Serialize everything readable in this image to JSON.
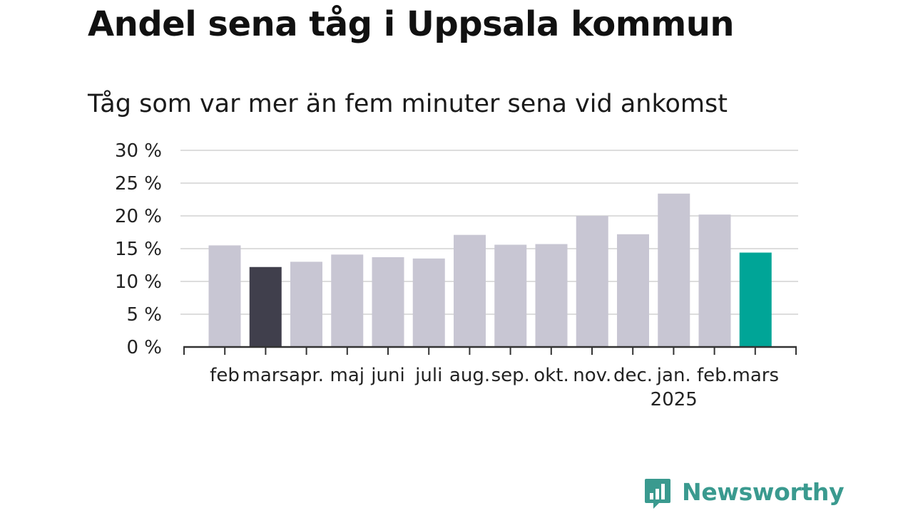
{
  "title": "Andel sena tåg i Uppsala kommun",
  "subtitle": "Tåg som var mer än fem minuter sena vid ankomst",
  "brand": {
    "name": "Newsworthy",
    "color": "#3a9a8f",
    "icon": "newsworthy-logo-icon"
  },
  "colors": {
    "default": "#c8c6d3",
    "previous_year": "#403f4c",
    "latest": "#00a597",
    "grid": "#dddddd",
    "axis": "#333333"
  },
  "chart_data": {
    "type": "bar",
    "categories": [
      "feb",
      "mars",
      "apr.",
      "maj",
      "juni",
      "juli",
      "aug.",
      "sep.",
      "okt.",
      "nov.",
      "dec.",
      "jan.",
      "feb.",
      "mars"
    ],
    "year_label": {
      "text": "2025",
      "under_category_index": 11
    },
    "values": [
      15.5,
      12.2,
      13.0,
      14.1,
      13.7,
      13.5,
      17.1,
      15.6,
      15.7,
      20.0,
      17.2,
      23.4,
      20.2,
      14.4
    ],
    "highlight": {
      "previous_year_index": 1,
      "latest_index": 13
    },
    "ylim": [
      0,
      30
    ],
    "yticks": [
      0,
      5,
      10,
      15,
      20,
      25,
      30
    ],
    "ytick_labels": [
      "0 %",
      "5 %",
      "10 %",
      "15 %",
      "20 %",
      "25 %",
      "30 %"
    ],
    "grid": true,
    "legend": "none",
    "xlabel": "",
    "ylabel": ""
  }
}
